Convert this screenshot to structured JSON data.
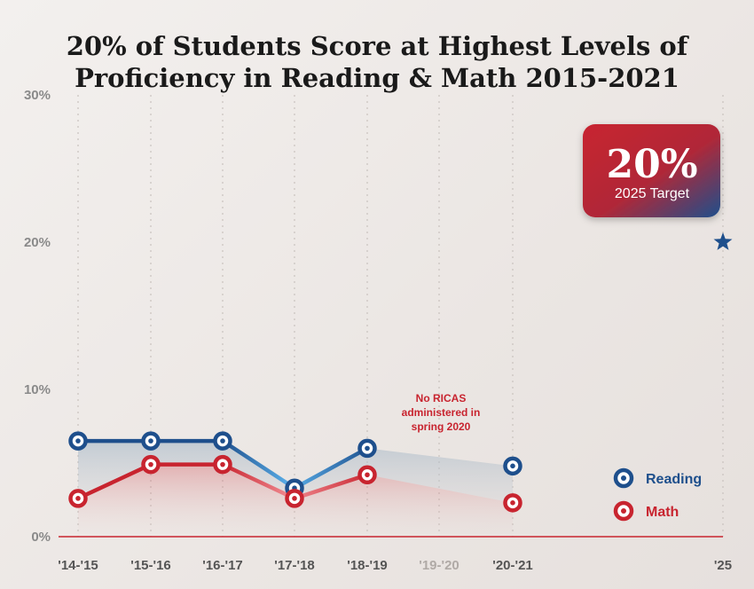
{
  "chart_data": {
    "type": "line",
    "title_lines": [
      "20% of Students Score at Highest Levels of",
      "Proficiency in Reading & Math 2015-2021"
    ],
    "categories": [
      "'14-'15",
      "'15-'16",
      "'16-'17",
      "'17-'18",
      "'18-'19",
      "'19-'20",
      "'20-'21",
      "'25"
    ],
    "y_ticks": [
      "0%",
      "10%",
      "20%",
      "30%"
    ],
    "ylim": [
      0,
      30
    ],
    "series": [
      {
        "name": "Reading",
        "color": "#1e4f8c",
        "values": [
          6.5,
          6.5,
          6.5,
          3.3,
          6.0,
          null,
          4.8,
          null
        ]
      },
      {
        "name": "Math",
        "color": "#c8242f",
        "values": [
          2.6,
          4.9,
          4.9,
          2.6,
          4.2,
          null,
          2.3,
          null
        ]
      }
    ],
    "target": {
      "value": 20,
      "value_label": "20%",
      "label": "2025 Target"
    },
    "annotation": [
      "No RICAS",
      "administered in",
      "spring 2020"
    ],
    "legend_position": "bottom-right",
    "grid": "vertical dotted"
  }
}
